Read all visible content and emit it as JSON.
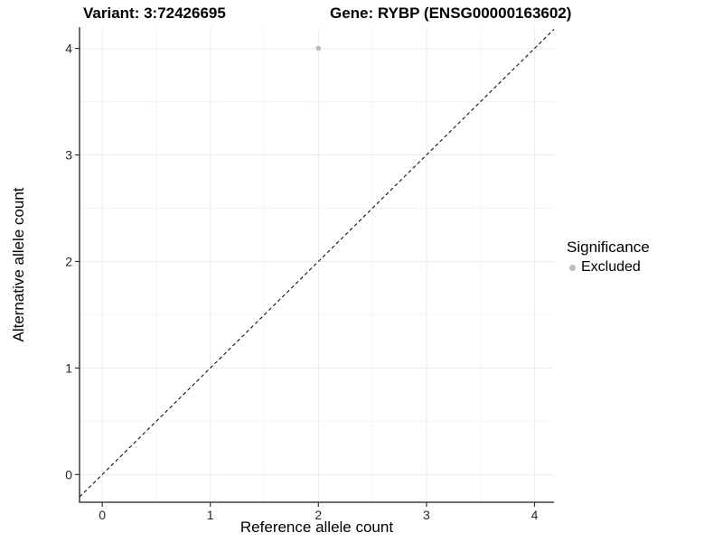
{
  "chart_data": {
    "type": "scatter",
    "titles": {
      "left": "Variant: 3:72426695",
      "right": "Gene: RYBP (ENSG00000163602)"
    },
    "xlabel": "Reference allele count",
    "ylabel": "Alternative allele count",
    "x_ticks": [
      0,
      1,
      2,
      3,
      4
    ],
    "y_ticks": [
      0,
      1,
      2,
      3,
      4
    ],
    "xlim": [
      -0.21,
      4.18
    ],
    "ylim": [
      -0.26,
      4.2
    ],
    "grid": {
      "major": true,
      "minor": true
    },
    "reference_line": {
      "style": "dashed",
      "slope": 1,
      "intercept": 0,
      "color": "#111111"
    },
    "series": [
      {
        "name": "Excluded",
        "color": "#bcbcbc",
        "points": [
          [
            2,
            4
          ]
        ]
      }
    ],
    "legend": {
      "title": "Significance",
      "position": "right",
      "items": [
        {
          "label": "Excluded",
          "color": "#bcbcbc"
        }
      ]
    },
    "colors": {
      "grid_major": "#ebebeb",
      "grid_minor": "#f4f4f4",
      "axis_line": "#1a1a1a",
      "tick_mark": "#333333"
    }
  }
}
